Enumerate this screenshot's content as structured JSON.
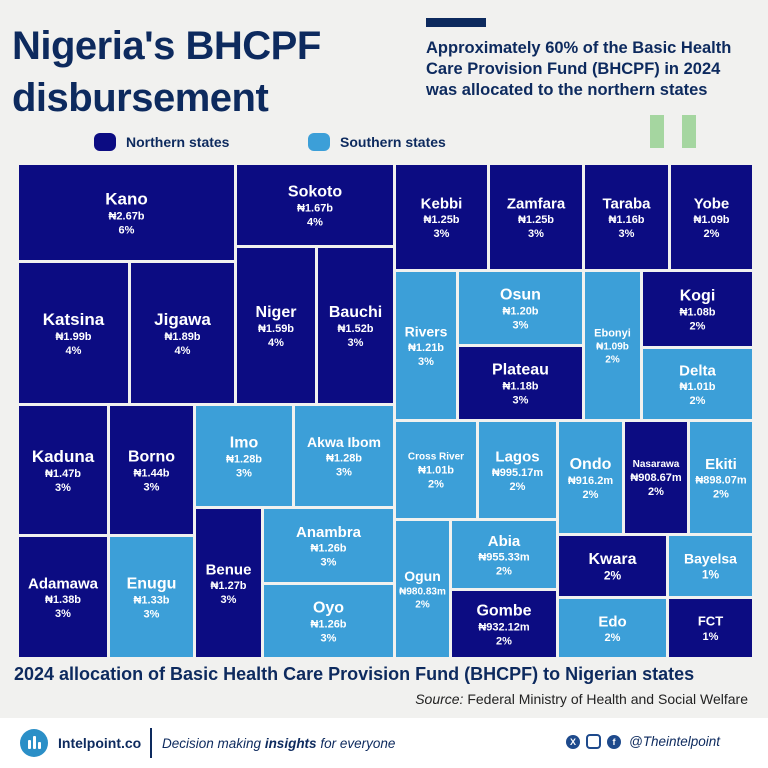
{
  "header": {
    "title": "Nigeria's BHCPF disbursement",
    "subtitle": "Approximately 60% of the Basic Health Care Provision Fund (BHCPF) in 2024 was allocated to the northern states"
  },
  "colors": {
    "northern": "#0c0c82",
    "southern": "#3c9fd8",
    "title": "#0d2a5e",
    "quote": "#a5d6a0"
  },
  "legend": {
    "northern": "Northern states",
    "southern": "Southern states"
  },
  "chart_data": {
    "type": "treemap",
    "title": "2024 allocation of Basic Health Care Provision Fund (BHCPF) to Nigerian states",
    "value_unit": "NGN",
    "items": [
      {
        "name": "Kano",
        "amount": "₦2.67b",
        "value": 2.67,
        "share": "6%",
        "region": "northern"
      },
      {
        "name": "Sokoto",
        "amount": "₦1.67b",
        "value": 1.67,
        "share": "4%",
        "region": "northern"
      },
      {
        "name": "Kebbi",
        "amount": "₦1.25b",
        "value": 1.25,
        "share": "3%",
        "region": "northern"
      },
      {
        "name": "Zamfara",
        "amount": "₦1.25b",
        "value": 1.25,
        "share": "3%",
        "region": "northern"
      },
      {
        "name": "Taraba",
        "amount": "₦1.16b",
        "value": 1.16,
        "share": "3%",
        "region": "northern"
      },
      {
        "name": "Yobe",
        "amount": "₦1.09b",
        "value": 1.09,
        "share": "2%",
        "region": "northern"
      },
      {
        "name": "Katsina",
        "amount": "₦1.99b",
        "value": 1.99,
        "share": "4%",
        "region": "northern"
      },
      {
        "name": "Jigawa",
        "amount": "₦1.89b",
        "value": 1.89,
        "share": "4%",
        "region": "northern"
      },
      {
        "name": "Niger",
        "amount": "₦1.59b",
        "value": 1.59,
        "share": "4%",
        "region": "northern"
      },
      {
        "name": "Bauchi",
        "amount": "₦1.52b",
        "value": 1.52,
        "share": "3%",
        "region": "northern"
      },
      {
        "name": "Rivers",
        "amount": "₦1.21b",
        "value": 1.21,
        "share": "3%",
        "region": "southern"
      },
      {
        "name": "Osun",
        "amount": "₦1.20b",
        "value": 1.2,
        "share": "3%",
        "region": "southern"
      },
      {
        "name": "Ebonyi",
        "amount": "₦1.09b",
        "value": 1.09,
        "share": "2%",
        "region": "southern"
      },
      {
        "name": "Kogi",
        "amount": "₦1.08b",
        "value": 1.08,
        "share": "2%",
        "region": "northern"
      },
      {
        "name": "Plateau",
        "amount": "₦1.18b",
        "value": 1.18,
        "share": "3%",
        "region": "northern"
      },
      {
        "name": "Delta",
        "amount": "₦1.01b",
        "value": 1.01,
        "share": "2%",
        "region": "southern"
      },
      {
        "name": "Kaduna",
        "amount": "₦1.47b",
        "value": 1.47,
        "share": "3%",
        "region": "northern"
      },
      {
        "name": "Borno",
        "amount": "₦1.44b",
        "value": 1.44,
        "share": "3%",
        "region": "northern"
      },
      {
        "name": "Imo",
        "amount": "₦1.28b",
        "value": 1.28,
        "share": "3%",
        "region": "southern"
      },
      {
        "name": "Akwa Ibom",
        "amount": "₦1.28b",
        "value": 1.28,
        "share": "3%",
        "region": "southern"
      },
      {
        "name": "Cross River",
        "amount": "₦1.01b",
        "value": 1.01,
        "share": "2%",
        "region": "southern"
      },
      {
        "name": "Lagos",
        "amount": "₦995.17m",
        "value": 0.99517,
        "share": "2%",
        "region": "southern"
      },
      {
        "name": "Ondo",
        "amount": "₦916.2m",
        "value": 0.9162,
        "share": "2%",
        "region": "southern"
      },
      {
        "name": "Nasarawa",
        "amount": "₦908.67m",
        "value": 0.90867,
        "share": "2%",
        "region": "northern"
      },
      {
        "name": "Ekiti",
        "amount": "₦898.07m",
        "value": 0.89807,
        "share": "2%",
        "region": "southern"
      },
      {
        "name": "Anambra",
        "amount": "₦1.26b",
        "value": 1.26,
        "share": "3%",
        "region": "southern"
      },
      {
        "name": "Abia",
        "amount": "₦955.33m",
        "value": 0.95533,
        "share": "2%",
        "region": "southern"
      },
      {
        "name": "Kwara",
        "amount": "",
        "value": null,
        "share": "2%",
        "region": "northern"
      },
      {
        "name": "Bayelsa",
        "amount": "",
        "value": null,
        "share": "1%",
        "region": "southern"
      },
      {
        "name": "Adamawa",
        "amount": "₦1.38b",
        "value": 1.38,
        "share": "3%",
        "region": "northern"
      },
      {
        "name": "Enugu",
        "amount": "₦1.33b",
        "value": 1.33,
        "share": "3%",
        "region": "southern"
      },
      {
        "name": "Benue",
        "amount": "₦1.27b",
        "value": 1.27,
        "share": "3%",
        "region": "northern"
      },
      {
        "name": "Oyo",
        "amount": "₦1.26b",
        "value": 1.26,
        "share": "3%",
        "region": "southern"
      },
      {
        "name": "Ogun",
        "amount": "₦980.83m",
        "value": 0.98083,
        "share": "2%",
        "region": "southern"
      },
      {
        "name": "Gombe",
        "amount": "₦932.12m",
        "value": 0.93212,
        "share": "2%",
        "region": "northern"
      },
      {
        "name": "Edo",
        "amount": "",
        "value": null,
        "share": "2%",
        "region": "southern"
      },
      {
        "name": "FCT",
        "amount": "",
        "value": null,
        "share": "1%",
        "region": "northern"
      }
    ]
  },
  "footer": {
    "source_label": "Source:",
    "source_text": "Federal Ministry of Health and Social Welfare",
    "brand": "Intelpoint.co",
    "tagline_pre": "Decision making",
    "tagline_bold": "insights",
    "tagline_post": "for everyone",
    "handle": "@Theintelpoint"
  }
}
